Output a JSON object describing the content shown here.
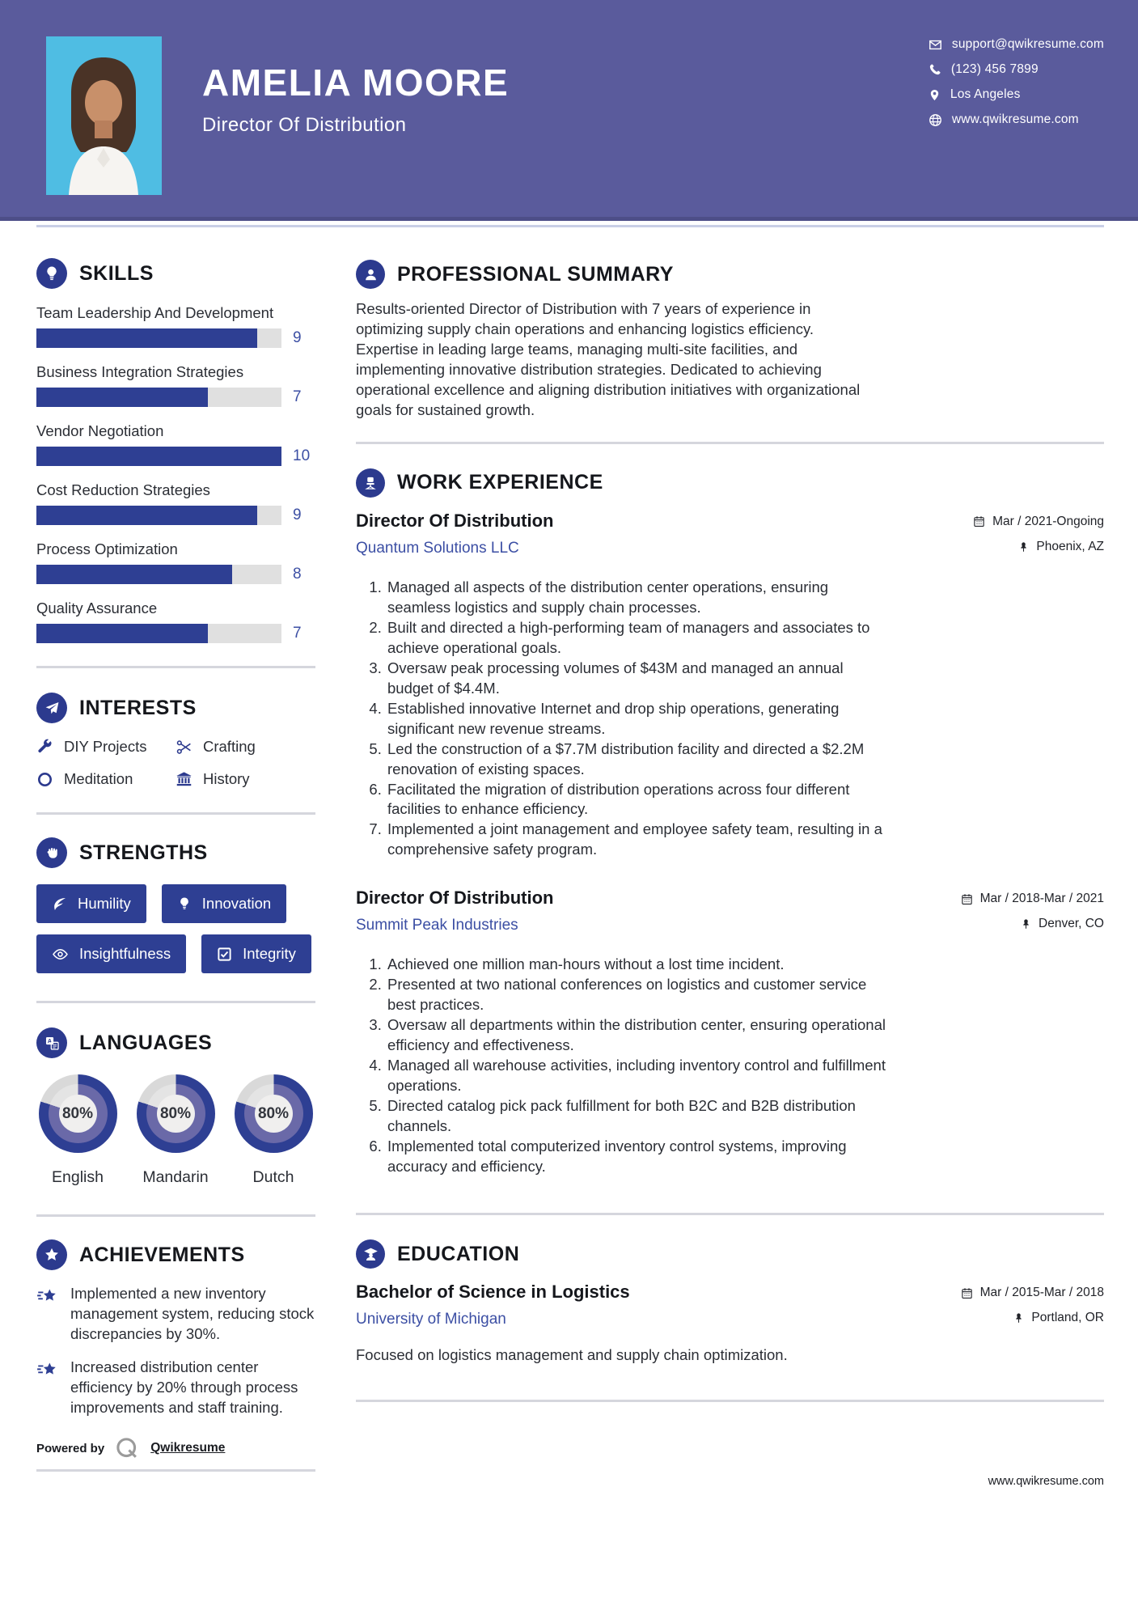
{
  "colors": {
    "header_bg": "#5a5b9c",
    "accent_blue": "#2e3f93",
    "link_blue": "#3c4fa4",
    "bar_track": "#e0e0e0",
    "donut_inner_ring": "#6a69a8",
    "donut_remainder": "#d9d9d9",
    "divider": "#d5d6dd"
  },
  "header": {
    "name": "AMELIA MOORE",
    "title": "Director Of Distribution",
    "contact": [
      {
        "icon": "envelope-icon",
        "text": "support@qwikresume.com"
      },
      {
        "icon": "phone-icon",
        "text": "(123) 456 7899"
      },
      {
        "icon": "location-pin-icon",
        "text": "Los Angeles"
      },
      {
        "icon": "globe-icon",
        "text": "www.qwikresume.com"
      }
    ]
  },
  "sidebar": {
    "skills": {
      "heading": "SKILLS",
      "icon": "lightbulb-icon",
      "items": [
        {
          "label": "Team Leadership And Development",
          "value": 9,
          "max": 10
        },
        {
          "label": "Business Integration Strategies",
          "value": 7,
          "max": 10
        },
        {
          "label": "Vendor Negotiation",
          "value": 10,
          "max": 10
        },
        {
          "label": "Cost Reduction Strategies",
          "value": 9,
          "max": 10
        },
        {
          "label": "Process Optimization",
          "value": 8,
          "max": 10
        },
        {
          "label": "Quality Assurance",
          "value": 7,
          "max": 10
        }
      ]
    },
    "interests": {
      "heading": "INTERESTS",
      "icon": "paper-plane-icon",
      "items": [
        {
          "label": "DIY Projects",
          "icon": "wrench-icon"
        },
        {
          "label": "Crafting",
          "icon": "scissors-icon"
        },
        {
          "label": "Meditation",
          "icon": "circle-icon"
        },
        {
          "label": "History",
          "icon": "museum-icon"
        }
      ]
    },
    "strengths": {
      "heading": "STRENGTHS",
      "icon": "fist-icon",
      "items": [
        {
          "label": "Humility",
          "icon": "leaf-icon"
        },
        {
          "label": "Innovation",
          "icon": "bulb-icon"
        },
        {
          "label": "Insightfulness",
          "icon": "eye-icon"
        },
        {
          "label": "Integrity",
          "icon": "checkbox-icon"
        }
      ]
    },
    "languages": {
      "heading": "LANGUAGES",
      "icon": "translate-icon",
      "items": [
        {
          "label": "English",
          "percent": 80,
          "display": "80%"
        },
        {
          "label": "Mandarin",
          "percent": 80,
          "display": "80%"
        },
        {
          "label": "Dutch",
          "percent": 80,
          "display": "80%"
        }
      ]
    },
    "achievements": {
      "heading": "ACHIEVEMENTS",
      "icon": "star-icon",
      "items": [
        {
          "icon": "shooting-star-icon",
          "text": "Implemented a new inventory management system, reducing stock discrepancies by 30%."
        },
        {
          "icon": "shooting-star-icon",
          "text": "Increased distribution center efficiency by 20% through process improvements and staff training."
        }
      ]
    }
  },
  "main": {
    "summary": {
      "heading": "PROFESSIONAL SUMMARY",
      "icon": "person-icon",
      "text": "Results-oriented Director of Distribution with 7 years of experience in optimizing supply chain operations and enhancing logistics efficiency. Expertise in leading large teams, managing multi-site facilities, and implementing innovative distribution strategies. Dedicated to achieving operational excellence and aligning distribution initiatives with organizational goals for sustained growth."
    },
    "experience": {
      "heading": "WORK EXPERIENCE",
      "icon": "office-chair-icon",
      "jobs": [
        {
          "title": "Director Of Distribution",
          "company": "Quantum Solutions LLC",
          "date": "Mar / 2021-Ongoing",
          "location": "Phoenix, AZ",
          "bullets": [
            "Managed all aspects of the distribution center operations, ensuring seamless logistics and supply chain processes.",
            "Built and directed a high-performing team of managers and associates to achieve operational goals.",
            "Oversaw peak processing volumes of $43M and managed an annual budget of $4.4M.",
            "Established innovative Internet and drop ship operations, generating significant new revenue streams.",
            "Led the construction of a $7.7M distribution facility and directed a $2.2M renovation of existing spaces.",
            "Facilitated the migration of distribution operations across four different facilities to enhance efficiency.",
            "Implemented a joint management and employee safety team, resulting in a comprehensive safety program."
          ]
        },
        {
          "title": "Director Of Distribution",
          "company": "Summit Peak Industries",
          "date": "Mar / 2018-Mar / 2021",
          "location": "Denver, CO",
          "bullets": [
            "Achieved one million man-hours without a lost time incident.",
            "Presented at two national conferences on logistics and customer service best practices.",
            "Oversaw all departments within the distribution center, ensuring operational efficiency and effectiveness.",
            "Managed all warehouse activities, including inventory control and fulfillment operations.",
            "Directed catalog pick pack fulfillment for both B2C and B2B distribution channels.",
            "Implemented total computerized inventory control systems, improving accuracy and efficiency."
          ]
        }
      ]
    },
    "education": {
      "heading": "EDUCATION",
      "icon": "graduation-icon",
      "degree": "Bachelor of Science in Logistics",
      "school": "University of Michigan",
      "date": "Mar / 2015-Mar / 2018",
      "location": "Portland, OR",
      "note": "Focused on logistics management and supply chain optimization."
    }
  },
  "footer": {
    "powered_by": "Powered by",
    "brand": "Qwikresume",
    "website": "www.qwikresume.com"
  }
}
